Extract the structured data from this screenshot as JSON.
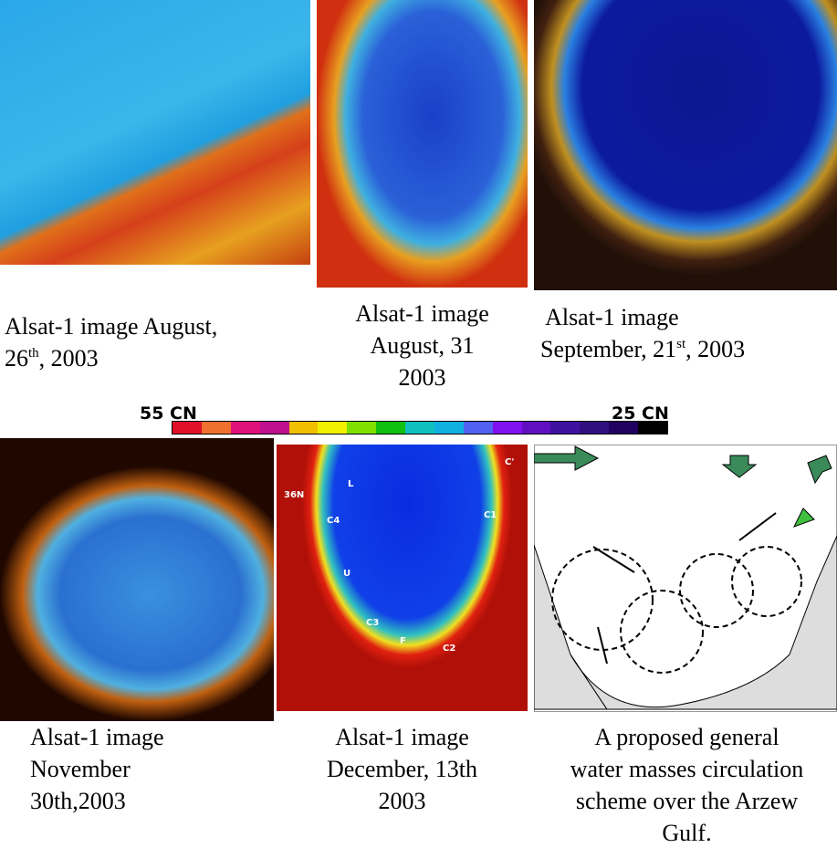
{
  "colorbar": {
    "left_label": "55 CN",
    "right_label": "25 CN"
  },
  "panels": [
    {
      "caption": [
        [
          {
            "text": "Alsat-1 image August,"
          }
        ],
        [
          {
            "text": "26"
          },
          {
            "text": "th",
            "superscript": true
          },
          {
            "text": ", 2003"
          }
        ]
      ],
      "align": "left"
    },
    {
      "caption": [
        [
          {
            "text": "Alsat-1 image"
          }
        ],
        [
          {
            "text": "August, 31"
          }
        ],
        [
          {
            "text": "2003"
          }
        ]
      ],
      "align": "center"
    },
    {
      "caption": [
        [
          {
            "text": " Alsat-1 image"
          }
        ],
        [
          {
            "text": "September, 21"
          },
          {
            "text": "st",
            "superscript": true
          },
          {
            "text": ", 2003"
          }
        ]
      ],
      "align": "left"
    },
    {
      "caption": [
        [
          {
            "text": "Alsat-1 image"
          }
        ],
        [
          {
            "text": "November"
          }
        ],
        [
          {
            "text": "30th,2003"
          }
        ]
      ],
      "align": "left"
    },
    {
      "caption": [
        [
          {
            "text": "Alsat-1 image"
          }
        ],
        [
          {
            "text": "December, 13th"
          }
        ],
        [
          {
            "text": "2003"
          }
        ]
      ],
      "align": "center"
    },
    {
      "caption": [
        [
          {
            "text": "A proposed general"
          }
        ],
        [
          {
            "text": "water masses circulation"
          }
        ],
        [
          {
            "text": "scheme over the Arzew"
          }
        ],
        [
          {
            "text": "Gulf."
          }
        ]
      ],
      "align": "center"
    }
  ],
  "december_labels": [
    "36N",
    "L",
    "C4",
    "U",
    "C3",
    "F",
    "C2",
    "C1",
    "C'"
  ]
}
